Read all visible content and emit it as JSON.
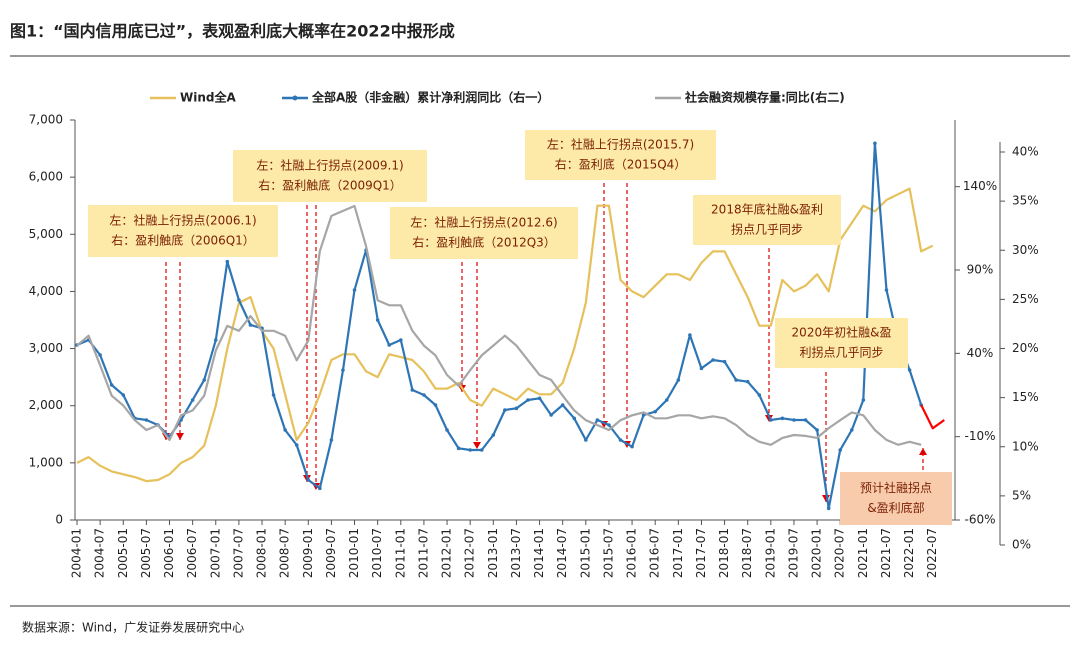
{
  "title": "图1：“国内信用底已过”，表观盈利底大概率在2022中报形成",
  "source": "数据来源：Wind，广发证券发展研究中心",
  "chart_data": {
    "type": "line",
    "x": [
      "2004-01",
      "2004-04",
      "2004-07",
      "2004-10",
      "2005-01",
      "2005-04",
      "2005-07",
      "2005-10",
      "2006-01",
      "2006-04",
      "2006-07",
      "2006-10",
      "2007-01",
      "2007-04",
      "2007-07",
      "2007-10",
      "2008-01",
      "2008-04",
      "2008-07",
      "2008-10",
      "2009-01",
      "2009-04",
      "2009-07",
      "2009-10",
      "2010-01",
      "2010-04",
      "2010-07",
      "2010-10",
      "2011-01",
      "2011-04",
      "2011-07",
      "2011-10",
      "2012-01",
      "2012-04",
      "2012-07",
      "2012-10",
      "2013-01",
      "2013-04",
      "2013-07",
      "2013-10",
      "2014-01",
      "2014-04",
      "2014-07",
      "2014-10",
      "2015-01",
      "2015-04",
      "2015-07",
      "2015-10",
      "2016-01",
      "2016-04",
      "2016-07",
      "2016-10",
      "2017-01",
      "2017-04",
      "2017-07",
      "2017-10",
      "2018-01",
      "2018-04",
      "2018-07",
      "2018-10",
      "2019-01",
      "2019-04",
      "2019-07",
      "2019-10",
      "2020-01",
      "2020-04",
      "2020-07",
      "2020-10",
      "2021-01",
      "2021-04",
      "2021-07",
      "2021-10",
      "2022-01",
      "2022-04",
      "2022-07",
      "2022-10"
    ],
    "xlim": [
      "2004-01",
      "2022-12"
    ],
    "xticks": [
      "2004-01",
      "2004-07",
      "2005-01",
      "2005-07",
      "2006-01",
      "2006-07",
      "2007-01",
      "2007-07",
      "2008-01",
      "2008-07",
      "2009-01",
      "2009-07",
      "2010-01",
      "2010-07",
      "2011-01",
      "2011-07",
      "2012-01",
      "2012-07",
      "2013-01",
      "2013-07",
      "2014-01",
      "2014-07",
      "2015-01",
      "2015-07",
      "2016-01",
      "2016-07",
      "2017-01",
      "2017-07",
      "2018-01",
      "2018-07",
      "2019-01",
      "2019-07",
      "2020-01",
      "2020-07",
      "2021-01",
      "2021-07",
      "2022-01",
      "2022-07"
    ],
    "ylim": [
      0,
      7000
    ],
    "yticks": [
      0,
      {
        "value": 1000,
        "label": "1,000"
      },
      {
        "value": 2000,
        "label": "2,000"
      },
      {
        "value": 3000,
        "label": "3,000"
      },
      {
        "value": 4000,
        "label": "4,000"
      },
      {
        "value": 5000,
        "label": "5,000"
      },
      {
        "value": 6000,
        "label": "6,000"
      },
      {
        "value": 7000,
        "label": "7,000"
      }
    ],
    "y2lim": [
      -60,
      180
    ],
    "y2ticks": [
      {
        "value": -60,
        "label": "-60%"
      },
      {
        "value": -10,
        "label": "-10%"
      },
      {
        "value": 40,
        "label": "40%"
      },
      {
        "value": 90,
        "label": "90%"
      },
      {
        "value": 140,
        "label": "140%"
      }
    ],
    "y3lim": [
      0,
      40
    ],
    "y3ticks": [
      {
        "value": 0,
        "label": "0%"
      },
      {
        "value": 5,
        "label": "5%"
      },
      {
        "value": 10,
        "label": "10%"
      },
      {
        "value": 15,
        "label": "15%"
      },
      {
        "value": 20,
        "label": "20%"
      },
      {
        "value": 25,
        "label": "25%"
      },
      {
        "value": 30,
        "label": "30%"
      },
      {
        "value": 35,
        "label": "35%"
      },
      {
        "value": 40,
        "label": "40%"
      }
    ],
    "series": [
      {
        "name": "Wind全A",
        "color": "#e6c05a",
        "values": [
          1000,
          1100,
          950,
          850,
          800,
          750,
          680,
          700,
          800,
          1000,
          1100,
          1300,
          2000,
          3000,
          3800,
          3900,
          3300,
          3000,
          2200,
          1400,
          1700,
          2200,
          2800,
          2900,
          2900,
          2600,
          2500,
          2900,
          2850,
          2800,
          2600,
          2300,
          2300,
          2400,
          2100,
          2000,
          2300,
          2200,
          2100,
          2300,
          2200,
          2200,
          2400,
          3000,
          3800,
          5500,
          5500,
          4200,
          4000,
          3900,
          4100,
          4300,
          4300,
          4200,
          4500,
          4700,
          4700,
          4300,
          3900,
          3400,
          3400,
          4200,
          4000,
          4100,
          4300,
          4000,
          4900,
          5200,
          5500,
          5400,
          5600,
          5700,
          5800,
          4700,
          4800,
          null
        ]
      },
      {
        "name": "全部A股（非金融）累计净利润同比（右一）",
        "color": "#2e75b6",
        "axis": "y2",
        "markers": true,
        "values": [
          45,
          48,
          39,
          21,
          15,
          1,
          0,
          -3,
          -10,
          0,
          12,
          24,
          48,
          95,
          72,
          57,
          55,
          15,
          -6,
          -15,
          -36,
          -41,
          -12,
          30,
          78,
          102,
          60,
          45,
          48,
          18,
          15,
          9,
          -6,
          -17,
          -18,
          -18,
          -9,
          6,
          7,
          12,
          13,
          3,
          9,
          1,
          -12,
          0,
          -3,
          -12,
          -16,
          3,
          5,
          12,
          24,
          51,
          31,
          36,
          35,
          24,
          23,
          15,
          0,
          1,
          0,
          0,
          -6,
          -53,
          -18,
          -6,
          12,
          166,
          78,
          48,
          30,
          9,
          null,
          null
        ]
      },
      {
        "color": "#ff0000",
        "axis": "y2",
        "values": [
          null,
          null,
          null,
          null,
          null,
          null,
          null,
          null,
          null,
          null,
          null,
          null,
          null,
          null,
          null,
          null,
          null,
          null,
          null,
          null,
          null,
          null,
          null,
          null,
          null,
          null,
          null,
          null,
          null,
          null,
          null,
          null,
          null,
          null,
          null,
          null,
          null,
          null,
          null,
          null,
          null,
          null,
          null,
          null,
          null,
          null,
          null,
          null,
          null,
          null,
          null,
          null,
          null,
          null,
          null,
          null,
          null,
          null,
          null,
          null,
          null,
          null,
          null,
          null,
          null,
          null,
          null,
          null,
          null,
          null,
          null,
          null,
          null,
          9,
          -5,
          0
        ]
      },
      {
        "name": "社会融资规模存量:同比(右二)",
        "color": "#a6a6a6",
        "axis": "y3",
        "values": [
          20.3,
          21.3,
          18.3,
          15.2,
          14.2,
          12.7,
          11.7,
          12.2,
          10.7,
          13.2,
          13.7,
          15.2,
          19.8,
          22.3,
          21.8,
          23.3,
          21.8,
          21.8,
          21.3,
          18.8,
          20.8,
          29.9,
          33.5,
          34.0,
          34.5,
          30.4,
          24.9,
          24.4,
          24.4,
          21.8,
          20.3,
          19.3,
          17.3,
          16.2,
          17.8,
          19.3,
          20.3,
          21.3,
          20.3,
          18.8,
          17.3,
          16.8,
          15.2,
          13.7,
          12.7,
          12.2,
          11.7,
          12.7,
          13.2,
          13.5,
          12.9,
          12.9,
          13.2,
          13.2,
          12.9,
          13.1,
          12.9,
          12.2,
          11.2,
          10.5,
          10.2,
          10.9,
          11.2,
          11.1,
          10.9,
          11.9,
          12.7,
          13.5,
          13.2,
          11.7,
          10.7,
          10.2,
          10.5,
          10.2,
          null,
          null
        ]
      }
    ],
    "annotations": [
      {
        "lines": [
          "左：社融上行拐点(2006.1)",
          "右：盈利触底（2006Q1）"
        ]
      },
      {
        "lines": [
          "左：社融上行拐点(2009.1)",
          "右：盈利触底（2009Q1）"
        ]
      },
      {
        "lines": [
          "左：社融上行拐点(2012.6)",
          "右：盈利触底（2012Q3）"
        ]
      },
      {
        "lines": [
          "左：社融上行拐点(2015.7)",
          "右：盈利底（2015Q4）"
        ]
      },
      {
        "lines": [
          "2018年底社融&盈利",
          "拐点几乎同步"
        ]
      },
      {
        "lines": [
          "2020年初社融&盈",
          "利拐点几乎同步"
        ]
      },
      {
        "lines": [
          "预计社融拐点",
          "&盈利底部"
        ]
      }
    ]
  }
}
